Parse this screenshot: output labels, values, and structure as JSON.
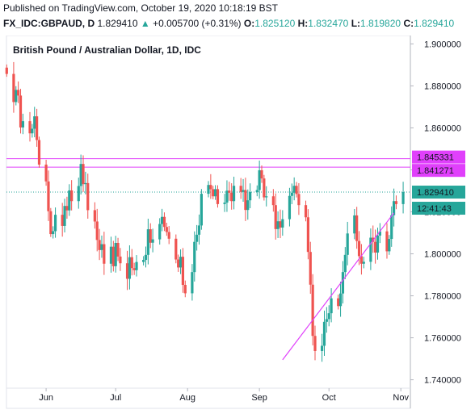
{
  "header": {
    "published": "Published on TradingView.com, October 19, 2020 10:18:19 BST",
    "symbol": "FX_IDC:GBPAUD, D",
    "last": "1.829410",
    "arrow": "▲",
    "change": "+0.005700 (+0.31%)",
    "o_label": "O:",
    "o_value": "1.825120",
    "h_label": "H:",
    "h_value": "1.832470",
    "l_label": "L:",
    "l_value": "1.819820",
    "c_label": "C:",
    "c_value": "1.829410"
  },
  "chart_data": {
    "type": "candlestick",
    "title": "British Pound / Australian Dollar, 1D, IDC",
    "x_ticks": [
      "Jun",
      "Jul",
      "Aug",
      "Sep",
      "Oct",
      "Nov"
    ],
    "y_ticks": [
      "1.740000",
      "1.760000",
      "1.780000",
      "1.800000",
      "1.820000",
      "1.840000",
      "1.860000",
      "1.880000",
      "1.900000"
    ],
    "ylim": [
      1.736,
      1.904
    ],
    "horizontal_lines": [
      {
        "value": 1.845331,
        "label": "1.845331",
        "color": "#e040fb"
      },
      {
        "value": 1.841271,
        "label": "1.841271",
        "color": "#e040fb"
      }
    ],
    "last_price": {
      "value": 1.82941,
      "label": "1.829410",
      "countdown": "12:41:43",
      "color": "#26a69a"
    },
    "trendline": {
      "from": {
        "date": "2020-09-11",
        "value": 1.7495
      },
      "to": {
        "date": "2020-10-29",
        "value": 1.8195
      },
      "color": "#e040fb"
    },
    "colors": {
      "up": "#26a69a",
      "down": "#ef5350"
    },
    "first_date": "2020-05-15",
    "closes": [
      1.8857,
      1.8723,
      1.8781,
      1.8754,
      1.8602,
      1.8632,
      1.8574,
      1.8596,
      1.8655,
      1.8542,
      1.8425,
      1.8345,
      1.8203,
      1.8094,
      1.8108,
      1.8186,
      1.8133,
      1.8228,
      1.8207,
      1.8302,
      1.8251,
      1.8323,
      1.8428,
      1.8332,
      1.8337,
      1.8208,
      1.8154,
      1.8066,
      1.8018,
      1.8046,
      1.7953,
      1.8034,
      1.7941,
      1.8052,
      1.7987,
      1.7955,
      1.7881,
      1.7984,
      1.7932,
      1.7922,
      1.7961,
      1.7971,
      1.7995,
      1.8117,
      1.8053,
      1.8069,
      1.8142,
      1.8176,
      1.8128,
      1.8104,
      1.8072,
      1.7973,
      1.7935,
      1.7986,
      1.7852,
      1.7812,
      1.7913,
      1.8057,
      1.8091,
      1.8135,
      1.8286,
      1.8328,
      1.8308,
      1.8274,
      1.8308,
      1.8237,
      1.8244,
      1.8301,
      1.8291,
      1.8251,
      1.8324,
      1.8295,
      1.8304,
      1.8209,
      1.8255,
      1.8294,
      1.8304,
      1.8398,
      1.8359,
      1.8269,
      1.8274,
      1.8232,
      1.8118,
      1.8155,
      1.8125,
      1.8165,
      1.8276,
      1.8291,
      1.8324,
      1.8285,
      1.8232,
      1.8174,
      1.8009,
      1.7853,
      1.7609,
      1.7537,
      1.7562,
      1.7676,
      1.7689,
      1.7717,
      1.7788,
      1.7751,
      1.7811,
      1.7913,
      1.7995,
      1.8097,
      1.8183,
      1.8061,
      1.7989,
      1.7953,
      1.7962,
      1.8077,
      1.8057,
      1.8006,
      1.8087,
      1.8107,
      1.8012,
      1.8071,
      1.8184,
      1.8251,
      1.8237,
      1.8294
    ]
  }
}
